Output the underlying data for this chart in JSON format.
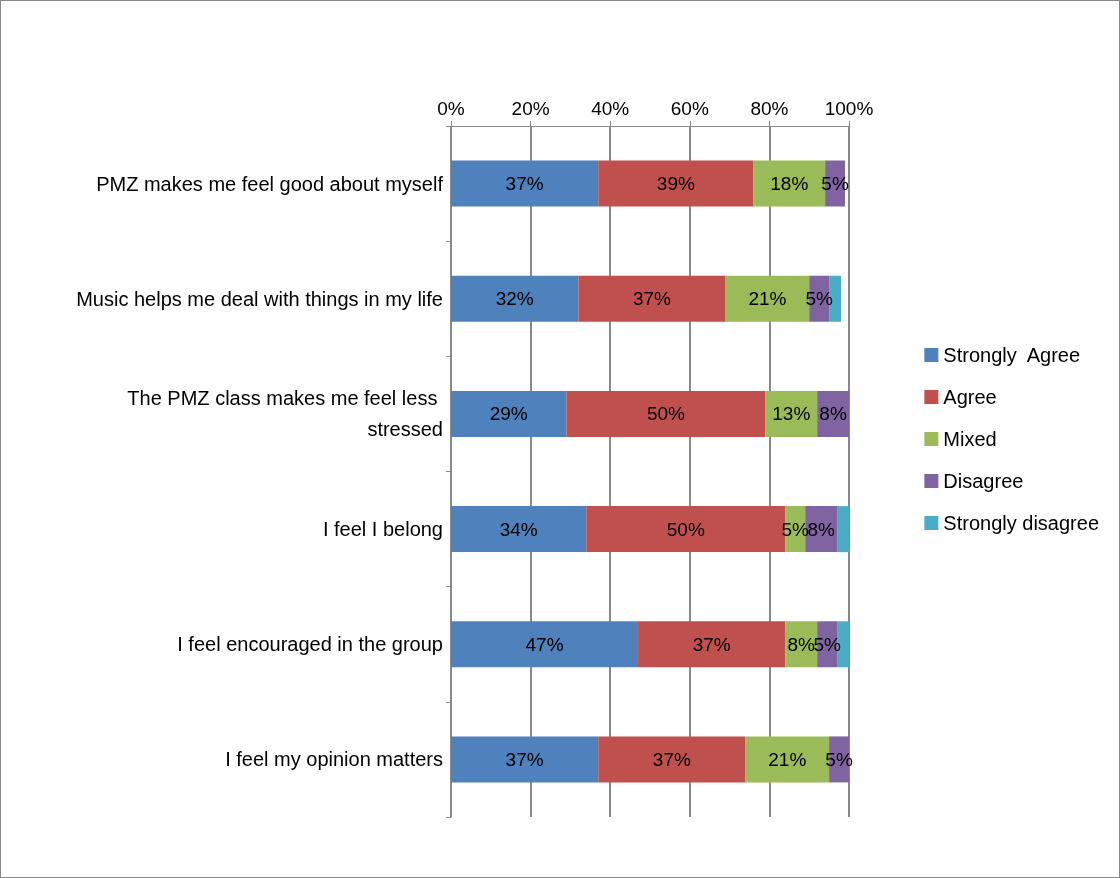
{
  "chart_data": {
    "type": "bar",
    "orientation": "horizontal",
    "stacked": true,
    "categories": [
      "PMZ makes me feel good about myself",
      "Music helps me deal with things in my life",
      "The PMZ class makes me feel less stressed",
      "I feel I belong",
      "I feel encouraged in the group",
      "I feel my opinion matters"
    ],
    "series": [
      {
        "name": "Strongly  Agree",
        "color": "#4f81bd",
        "values": [
          37,
          32,
          29,
          34,
          47,
          37
        ],
        "value_labels": [
          "37%",
          "32%",
          "29%",
          "34%",
          "47%",
          "37%"
        ]
      },
      {
        "name": "Agree",
        "color": "#c0504d",
        "values": [
          39,
          37,
          50,
          50,
          37,
          37
        ],
        "value_labels": [
          "39%",
          "37%",
          "50%",
          "50%",
          "37%",
          "37%"
        ]
      },
      {
        "name": "Mixed",
        "color": "#9bbb59",
        "values": [
          18,
          21,
          13,
          5,
          8,
          21
        ],
        "value_labels": [
          "18%",
          "21%",
          "13%",
          "5%",
          "8%",
          "21%"
        ]
      },
      {
        "name": "Disagree",
        "color": "#8064a2",
        "values": [
          5,
          5,
          8,
          8,
          5,
          5
        ],
        "value_labels": [
          "5%",
          "5%",
          "8%",
          "8%",
          "5%",
          "5%"
        ]
      },
      {
        "name": "Strongly disagree",
        "color": "#4bacc6",
        "values": [
          0,
          3,
          0,
          3,
          3,
          0
        ],
        "value_labels": [
          null,
          null,
          null,
          null,
          null,
          null
        ]
      }
    ],
    "xlim": [
      0,
      100
    ],
    "xticks": [
      {
        "value": 0,
        "label": "0%"
      },
      {
        "value": 20,
        "label": "20%"
      },
      {
        "value": 40,
        "label": "40%"
      },
      {
        "value": 60,
        "label": "60%"
      },
      {
        "value": 80,
        "label": "80%"
      },
      {
        "value": 100,
        "label": "100%"
      }
    ],
    "grid": "x",
    "legend": "right"
  }
}
